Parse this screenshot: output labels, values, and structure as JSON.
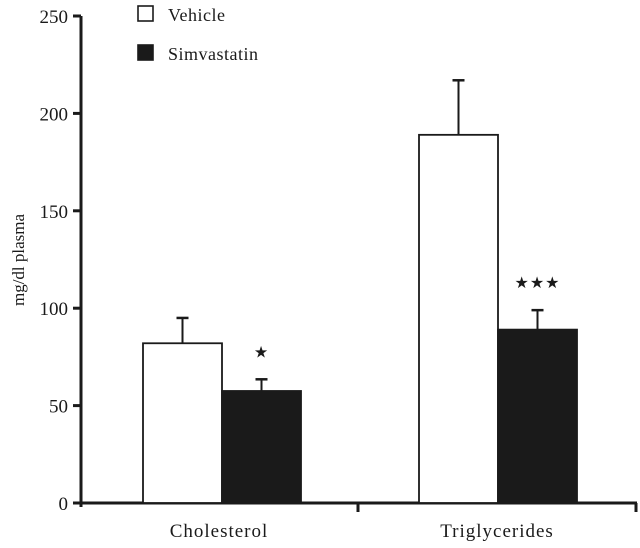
{
  "chart_data": {
    "type": "bar",
    "title": "",
    "xlabel": "",
    "ylabel": "mg/dl plasma",
    "ylim": [
      0,
      250
    ],
    "yticks": [
      0,
      50,
      100,
      150,
      200,
      250
    ],
    "ytick_labels": [
      "0",
      "50",
      "100",
      "150",
      "200",
      "250"
    ],
    "categories": [
      "Cholesterol",
      "Triglycerides"
    ],
    "series": [
      {
        "name": "Vehicle",
        "color": "#ffffff",
        "edge": "#1a1a1a",
        "values": [
          82,
          189
        ],
        "errors": [
          13,
          28
        ],
        "significance": [
          "",
          ""
        ]
      },
      {
        "name": "Simvastatin",
        "color": "#1a1a1a",
        "edge": "#1a1a1a",
        "values": [
          57.5,
          89
        ],
        "errors": [
          6,
          10
        ],
        "significance": [
          "★",
          "★★★"
        ]
      }
    ],
    "legend": {
      "placement": "top-left",
      "entries": [
        "Vehicle",
        "Simvastatin"
      ]
    },
    "grid": false
  }
}
